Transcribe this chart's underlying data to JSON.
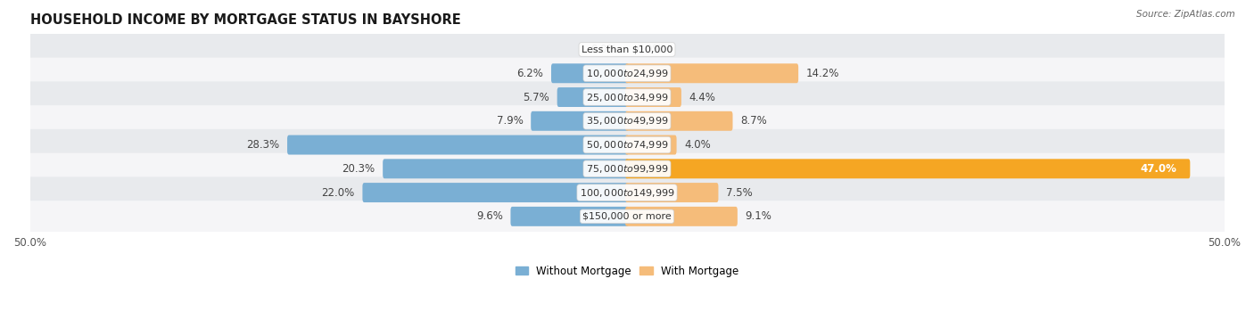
{
  "title": "HOUSEHOLD INCOME BY MORTGAGE STATUS IN BAYSHORE",
  "source": "Source: ZipAtlas.com",
  "categories": [
    "Less than $10,000",
    "$10,000 to $24,999",
    "$25,000 to $34,999",
    "$35,000 to $49,999",
    "$50,000 to $74,999",
    "$75,000 to $99,999",
    "$100,000 to $149,999",
    "$150,000 or more"
  ],
  "without_mortgage": [
    0.0,
    6.2,
    5.7,
    7.9,
    28.3,
    20.3,
    22.0,
    9.6
  ],
  "with_mortgage": [
    0.0,
    14.2,
    4.4,
    8.7,
    4.0,
    47.0,
    7.5,
    9.1
  ],
  "color_without": "#7aafd4",
  "color_with": "#f5bc7a",
  "color_with_highlight": "#f5a623",
  "axis_max": 50.0,
  "background_row_odd": "#e8eaed",
  "background_row_even": "#f5f5f7",
  "legend_labels": [
    "Without Mortgage",
    "With Mortgage"
  ],
  "value_fontsize": 8.5,
  "category_fontsize": 8.0,
  "title_fontsize": 10.5
}
